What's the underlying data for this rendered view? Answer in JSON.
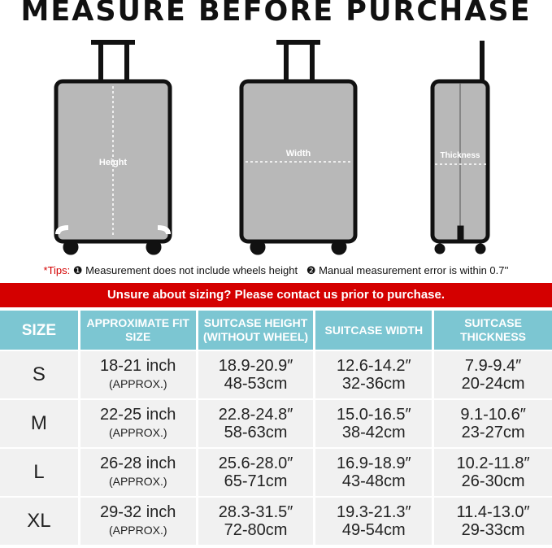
{
  "title": "MEASURE BEFORE PURCHASE",
  "diagram": {
    "height": "Height",
    "width": "Width",
    "thickness": "Thickness"
  },
  "tips": {
    "label": "*Tips:",
    "tip1": "❶ Measurement does not include wheels height",
    "tip2": "❷ Manual measurement error is within 0.7''"
  },
  "banner": "Unsure about sizing? Please contact us prior to purchase.",
  "colors": {
    "banner": "#d40000",
    "header": "#7cc6d2",
    "row": "#f1f1f1"
  },
  "table": {
    "headers": [
      "SIZE",
      "APPROXIMATE FIT SIZE",
      "SUITCASE HEIGHT (WITHOUT WHEEL)",
      "SUITCASE WIDTH",
      "SUITCASE THICKNESS"
    ],
    "rows": [
      {
        "size": "S",
        "fit": "18-21 inch",
        "approx": "(APPROX.)",
        "height_in": "18.9-20.9″",
        "height_cm": "48-53cm",
        "width_in": "12.6-14.2″",
        "width_cm": "32-36cm",
        "thick_in": "7.9-9.4″",
        "thick_cm": "20-24cm"
      },
      {
        "size": "M",
        "fit": "22-25 inch",
        "approx": "(APPROX.)",
        "height_in": "22.8-24.8″",
        "height_cm": "58-63cm",
        "width_in": "15.0-16.5″",
        "width_cm": "38-42cm",
        "thick_in": "9.1-10.6″",
        "thick_cm": "23-27cm"
      },
      {
        "size": "L",
        "fit": "26-28 inch",
        "approx": "(APPROX.)",
        "height_in": "25.6-28.0″",
        "height_cm": "65-71cm",
        "width_in": "16.9-18.9″",
        "width_cm": "43-48cm",
        "thick_in": "10.2-11.8″",
        "thick_cm": "26-30cm"
      },
      {
        "size": "XL",
        "fit": "29-32 inch",
        "approx": "(APPROX.)",
        "height_in": "28.3-31.5″",
        "height_cm": "72-80cm",
        "width_in": "19.3-21.3″",
        "width_cm": "49-54cm",
        "thick_in": "11.4-13.0″",
        "thick_cm": "29-33cm"
      }
    ]
  }
}
